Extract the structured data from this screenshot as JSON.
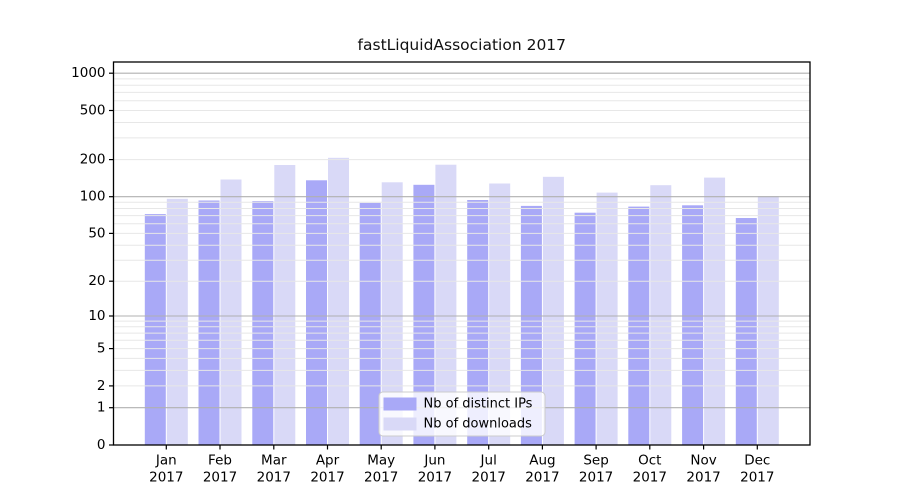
{
  "chart_data": {
    "type": "bar",
    "title": "fastLiquidAssociation 2017",
    "year_label": "2017",
    "categories": [
      "Jan",
      "Feb",
      "Mar",
      "Apr",
      "May",
      "Jun",
      "Jul",
      "Aug",
      "Sep",
      "Oct",
      "Nov",
      "Dec"
    ],
    "series": [
      {
        "name": "Nb of distinct IPs",
        "color": "#a9a9f7",
        "values": [
          72,
          93,
          92,
          136,
          89,
          125,
          94,
          84,
          74,
          83,
          85,
          67
        ]
      },
      {
        "name": "Nb of downloads",
        "color": "#d9d9f7",
        "values": [
          96,
          138,
          181,
          207,
          131,
          182,
          128,
          145,
          108,
          124,
          143,
          101
        ]
      }
    ],
    "yscale": "log1p",
    "yticks": [
      0,
      1,
      2,
      5,
      10,
      20,
      50,
      100,
      200,
      500,
      1000
    ],
    "ylim": [
      0,
      1000
    ],
    "grid": {
      "major_lines": [
        1,
        10,
        100,
        1000
      ],
      "minor_on": true
    },
    "legend": {
      "position": "inside-bottom-center",
      "entries": [
        "Nb of distinct IPs",
        "Nb of downloads"
      ]
    },
    "colors": {
      "major_grid": "#b0b0b0",
      "minor_grid": "#e7e7e7",
      "spine": "#000000",
      "legend_border": "#cccccc",
      "legend_bg": "rgba(255,255,255,0.8)"
    }
  }
}
